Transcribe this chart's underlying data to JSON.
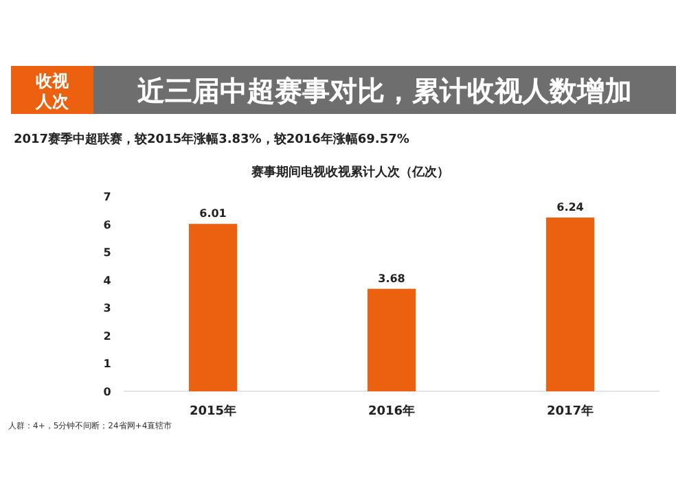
{
  "chart_data": {
    "type": "bar",
    "title": "近三届中超赛事对比，累计收视人数增加",
    "subtitle": "2017赛季中超联赛，较2015年涨幅3.83%，较2016年涨幅69.57%",
    "ylabel": "赛事期间电视收视累计人次（亿次）",
    "annotations": [
      "收视人次",
      "人群：4+，5分钟不间断；24省网+4直辖市"
    ],
    "categories": [
      "2015年",
      "2016年",
      "2017年"
    ],
    "values": [
      6.01,
      3.68,
      6.24
    ],
    "color": "#eb610f",
    "ylim": [
      0,
      7
    ],
    "yticks": [
      0,
      1,
      2,
      3,
      4,
      5,
      6,
      7
    ],
    "grid": false,
    "data_labels": true
  }
}
